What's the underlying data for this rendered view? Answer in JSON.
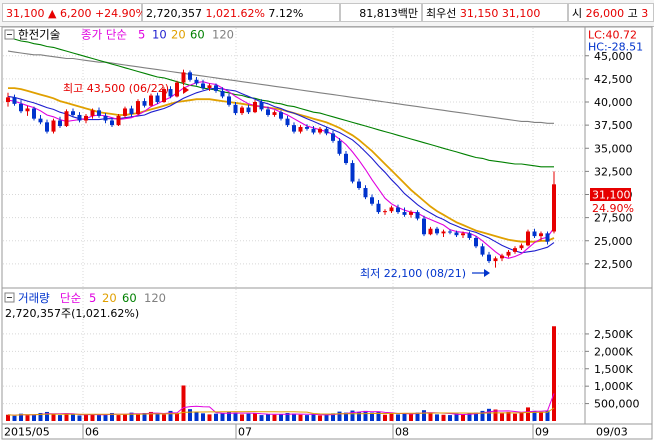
{
  "topbar": {
    "price": "31,100",
    "change_arrow": "▲",
    "change": "6,200",
    "change_pct": "+24.90%",
    "volume": "2,720,357",
    "volume_ratio": "1,021.62%",
    "turnover": "7.12%",
    "amount": "81,813백만",
    "lowest_label": "최우선",
    "bid": "31,150",
    "ask": "31,100",
    "open_label": "시",
    "open": "26,000",
    "high_label": "고",
    "high_cut": "3"
  },
  "price_panel": {
    "stock_name": "한전기술",
    "indicator_label": "종가 단순",
    "ma_periods": [
      "5",
      "10",
      "20",
      "60",
      "120"
    ],
    "lc": "LC:40.72",
    "hc": "HC:-28.51",
    "last_price": "31,100",
    "last_change_pct": "24.90%",
    "high_annotation": "최고 43,500 (06/22)",
    "low_annotation": "최저 22,100 (08/21)"
  },
  "volume_panel": {
    "title": "거래량",
    "indicator_label": "단순",
    "ma_periods": [
      "5",
      "20",
      "60",
      "120"
    ],
    "last_volume": "2,720,357주(1,021.62%)"
  },
  "colors": {
    "up": "#e60000",
    "down": "#0033cc",
    "ma5": "#e000e0",
    "ma10": "#1f1fcf",
    "ma20": "#e0a000",
    "ma60": "#008000",
    "ma120": "#808080"
  },
  "chart_data": [
    {
      "type": "candlestick",
      "title": "한전기술",
      "y_axis_side": "right",
      "ylim": [
        20000,
        48000
      ],
      "yticks": [
        22500,
        25000,
        27500,
        30000,
        32500,
        35000,
        37500,
        40000,
        42500,
        45000
      ],
      "ytick_labels": [
        "22,500",
        "25,000",
        "27,500",
        "30,000",
        "32,500",
        "35,000",
        "37,500",
        "40,000",
        "42,500",
        "45,000"
      ],
      "x_tick_labels": [
        "2015/05",
        "06",
        "07",
        "08",
        "09",
        "09/03"
      ],
      "candles": [
        [
          40000,
          41000,
          39500,
          40500
        ],
        [
          40500,
          40800,
          39600,
          39800
        ],
        [
          39800,
          40200,
          38800,
          39000
        ],
        [
          39000,
          39600,
          38500,
          39300
        ],
        [
          39300,
          39500,
          38000,
          38200
        ],
        [
          38200,
          38600,
          37600,
          37800
        ],
        [
          37800,
          38100,
          36600,
          36800
        ],
        [
          36800,
          38200,
          36600,
          38000
        ],
        [
          38000,
          38400,
          37200,
          37400
        ],
        [
          37400,
          39200,
          37300,
          39000
        ],
        [
          39000,
          39300,
          38400,
          38600
        ],
        [
          38600,
          38900,
          37800,
          38000
        ],
        [
          38000,
          38700,
          37700,
          38500
        ],
        [
          38500,
          39300,
          38200,
          39100
        ],
        [
          39100,
          39400,
          38300,
          38500
        ],
        [
          38500,
          38800,
          37700,
          38000
        ],
        [
          38000,
          38300,
          37300,
          37500
        ],
        [
          37500,
          38700,
          37400,
          38500
        ],
        [
          38500,
          39500,
          38300,
          39300
        ],
        [
          39300,
          39600,
          38400,
          38700
        ],
        [
          38700,
          40300,
          38600,
          40100
        ],
        [
          40100,
          40400,
          39400,
          39600
        ],
        [
          39600,
          40900,
          39500,
          40700
        ],
        [
          40700,
          41000,
          39800,
          40000
        ],
        [
          40000,
          41600,
          39900,
          41400
        ],
        [
          41400,
          41700,
          40400,
          40600
        ],
        [
          40600,
          42300,
          40500,
          42100
        ],
        [
          42100,
          43500,
          41800,
          43200
        ],
        [
          43200,
          43400,
          42200,
          42400
        ],
        [
          42400,
          42700,
          41800,
          42000
        ],
        [
          42000,
          42400,
          41300,
          41500
        ],
        [
          41500,
          42000,
          41200,
          41800
        ],
        [
          41800,
          42000,
          41000,
          41200
        ],
        [
          41200,
          41600,
          40400,
          40600
        ],
        [
          40600,
          40900,
          39500,
          39700
        ],
        [
          39700,
          40000,
          38600,
          38800
        ],
        [
          38800,
          39600,
          38600,
          39400
        ],
        [
          39400,
          39700,
          38700,
          38900
        ],
        [
          38900,
          40200,
          38800,
          40000
        ],
        [
          40000,
          40300,
          39000,
          39200
        ],
        [
          39200,
          39500,
          38400,
          38600
        ],
        [
          38600,
          39100,
          38400,
          38900
        ],
        [
          38900,
          39100,
          38000,
          38200
        ],
        [
          38200,
          38500,
          37300,
          37500
        ],
        [
          37500,
          37800,
          36600,
          36800
        ],
        [
          36800,
          37500,
          36600,
          37300
        ],
        [
          37300,
          37600,
          36900,
          37100
        ],
        [
          37100,
          37400,
          36500,
          36700
        ],
        [
          36700,
          37300,
          36500,
          37100
        ],
        [
          37100,
          37300,
          36400,
          36600
        ],
        [
          36600,
          36900,
          35600,
          35800
        ],
        [
          35800,
          36100,
          34200,
          34400
        ],
        [
          34400,
          34700,
          33200,
          33400
        ],
        [
          33400,
          33700,
          31200,
          31400
        ],
        [
          31400,
          31700,
          30500,
          30700
        ],
        [
          30700,
          31000,
          29500,
          29700
        ],
        [
          29700,
          30000,
          28800,
          29000
        ],
        [
          29000,
          29400,
          27900,
          28100
        ],
        [
          28100,
          28400,
          27800,
          28200
        ],
        [
          28200,
          28800,
          28000,
          28600
        ],
        [
          28600,
          28900,
          27900,
          28100
        ],
        [
          28100,
          28600,
          27600,
          27800
        ],
        [
          27800,
          28300,
          27500,
          28100
        ],
        [
          28100,
          28300,
          27200,
          27400
        ],
        [
          27400,
          27700,
          25500,
          25700
        ],
        [
          25700,
          26500,
          25600,
          26300
        ],
        [
          26300,
          26500,
          25600,
          25800
        ],
        [
          25800,
          26200,
          25400,
          26000
        ],
        [
          26000,
          26200,
          25700,
          25900
        ],
        [
          25900,
          26100,
          25400,
          25600
        ],
        [
          25600,
          26000,
          25300,
          25800
        ],
        [
          25800,
          26000,
          25100,
          25300
        ],
        [
          25300,
          25500,
          24200,
          24400
        ],
        [
          24400,
          24700,
          23300,
          23500
        ],
        [
          23500,
          23800,
          22600,
          22800
        ],
        [
          22800,
          23300,
          22100,
          23100
        ],
        [
          23100,
          23600,
          22800,
          23400
        ],
        [
          23400,
          24000,
          23200,
          23800
        ],
        [
          23800,
          24400,
          23600,
          24200
        ],
        [
          24200,
          24700,
          24000,
          24500
        ],
        [
          24500,
          26200,
          24400,
          26000
        ],
        [
          26000,
          26300,
          25300,
          25500
        ],
        [
          25500,
          26000,
          25000,
          25800
        ],
        [
          25800,
          26000,
          24600,
          24900
        ],
        [
          26000,
          32500,
          25800,
          31100
        ]
      ],
      "moving_averages": [
        {
          "name": "5",
          "values": [
            40200,
            40100,
            39850,
            39600,
            39400,
            39050,
            38600,
            38400,
            38100,
            37900,
            38000,
            38100,
            38200,
            38500,
            38600,
            38500,
            38300,
            38100,
            38200,
            38300,
            38600,
            39000,
            39500,
            39800,
            40200,
            40500,
            41000,
            41500,
            41800,
            42100,
            42200,
            42000,
            41900,
            41500,
            41100,
            40600,
            40200,
            39800,
            39600,
            39500,
            39400,
            39200,
            38900,
            38600,
            38200,
            37800,
            37400,
            37200,
            37000,
            36800,
            36500,
            36000,
            35400,
            34600,
            33700,
            32700,
            31600,
            30600,
            29600,
            29000,
            28600,
            28300,
            28100,
            28000,
            27600,
            27300,
            27000,
            26700,
            26200,
            26000,
            25900,
            25800,
            25500,
            25000,
            24400,
            23800,
            23300,
            23100,
            23300,
            23600,
            24200,
            24800,
            25200,
            25400,
            26400
          ]
        },
        {
          "name": "10",
          "values": [
            40600,
            40500,
            40300,
            40100,
            39900,
            39650,
            39400,
            39200,
            38900,
            38700,
            38400,
            38200,
            38100,
            38100,
            38100,
            38200,
            38200,
            38200,
            38300,
            38400,
            38500,
            38600,
            38900,
            39100,
            39300,
            39600,
            40000,
            40400,
            40700,
            41000,
            41200,
            41400,
            41500,
            41400,
            41300,
            41200,
            40900,
            40600,
            40300,
            40000,
            39800,
            39500,
            39300,
            39000,
            38800,
            38500,
            38200,
            37900,
            37600,
            37300,
            37000,
            36700,
            36300,
            35900,
            35300,
            34600,
            33900,
            33100,
            32400,
            31600,
            30900,
            30100,
            29500,
            28900,
            28400,
            28000,
            27600,
            27300,
            26900,
            26600,
            26300,
            26100,
            25900,
            25600,
            25300,
            24900,
            24500,
            24200,
            23900,
            23700,
            23800,
            23900,
            24100,
            24300,
            24800
          ]
        },
        {
          "name": "20",
          "values": [
            41500,
            41500,
            41400,
            41200,
            41000,
            40800,
            40600,
            40400,
            40100,
            39900,
            39700,
            39500,
            39300,
            39100,
            38900,
            38800,
            38700,
            38600,
            38600,
            38700,
            38800,
            39000,
            39200,
            39400,
            39600,
            39800,
            40000,
            40100,
            40200,
            40300,
            40300,
            40300,
            40200,
            40100,
            40000,
            39900,
            39800,
            39700,
            39600,
            39500,
            39400,
            39300,
            39200,
            39000,
            38800,
            38600,
            38400,
            38200,
            38000,
            37800,
            37500,
            37200,
            36800,
            36400,
            35900,
            35300,
            34700,
            34000,
            33300,
            32600,
            31900,
            31200,
            30500,
            29900,
            29300,
            28700,
            28200,
            27800,
            27400,
            27000,
            26700,
            26400,
            26100,
            25900,
            25700,
            25500,
            25300,
            25100,
            25000,
            24900,
            24900,
            24900,
            25000,
            25000,
            25300
          ]
        },
        {
          "name": "60",
          "values": [
            47000,
            46800,
            46600,
            46500,
            46300,
            46200,
            46000,
            45900,
            45700,
            45500,
            45300,
            45100,
            44900,
            44700,
            44500,
            44300,
            44100,
            43900,
            43700,
            43500,
            43300,
            43100,
            42900,
            42700,
            42600,
            42400,
            42200,
            42000,
            41800,
            41700,
            41500,
            41400,
            41300,
            41100,
            41000,
            40800,
            40700,
            40500,
            40400,
            40200,
            40100,
            39900,
            39800,
            39600,
            39500,
            39300,
            39100,
            38900,
            38800,
            38600,
            38400,
            38200,
            38000,
            37800,
            37600,
            37400,
            37200,
            37000,
            36800,
            36600,
            36400,
            36200,
            36000,
            35800,
            35600,
            35400,
            35200,
            35000,
            34800,
            34600,
            34400,
            34200,
            34000,
            33900,
            33700,
            33600,
            33500,
            33400,
            33300,
            33300,
            33200,
            33100,
            33000,
            33000,
            33000
          ]
        },
        {
          "name": "120",
          "values": [
            45500,
            45400,
            45300,
            45200,
            45100,
            45100,
            45000,
            44900,
            44800,
            44700,
            44700,
            44600,
            44500,
            44400,
            44300,
            44300,
            44200,
            44100,
            44000,
            43900,
            43800,
            43700,
            43600,
            43500,
            43400,
            43300,
            43200,
            43100,
            43000,
            42900,
            42800,
            42700,
            42600,
            42500,
            42400,
            42300,
            42200,
            42100,
            42000,
            41900,
            41800,
            41700,
            41600,
            41500,
            41400,
            41300,
            41200,
            41100,
            41000,
            40900,
            40800,
            40700,
            40600,
            40500,
            40400,
            40300,
            40200,
            40100,
            40000,
            39900,
            39800,
            39700,
            39600,
            39500,
            39400,
            39300,
            39200,
            39100,
            39000,
            38900,
            38800,
            38700,
            38600,
            38500,
            38400,
            38300,
            38200,
            38100,
            38000,
            37900,
            37900,
            37800,
            37800,
            37700,
            37700
          ]
        }
      ]
    },
    {
      "type": "bar",
      "title": "거래량",
      "y_axis_side": "right",
      "ylim": [
        0,
        2900000
      ],
      "yticks": [
        500000,
        1000000,
        1500000,
        2000000,
        2500000
      ],
      "ytick_labels": [
        "500,000",
        "1,000K",
        "1,500K",
        "2,000K",
        "2,500K"
      ],
      "values": [
        180000,
        150000,
        210000,
        170000,
        190000,
        230000,
        260000,
        200000,
        170000,
        210000,
        190000,
        160000,
        180000,
        200000,
        170000,
        190000,
        230000,
        170000,
        200000,
        240000,
        200000,
        230000,
        260000,
        200000,
        190000,
        290000,
        230000,
        1020000,
        340000,
        250000,
        220000,
        190000,
        210000,
        230000,
        260000,
        240000,
        190000,
        210000,
        220000,
        170000,
        200000,
        180000,
        190000,
        230000,
        210000,
        180000,
        170000,
        190000,
        160000,
        180000,
        220000,
        270000,
        240000,
        300000,
        260000,
        290000,
        240000,
        260000,
        180000,
        210000,
        190000,
        230000,
        200000,
        240000,
        310000,
        220000,
        190000,
        180000,
        170000,
        210000,
        190000,
        230000,
        240000,
        290000,
        350000,
        330000,
        220000,
        260000,
        210000,
        240000,
        390000,
        290000,
        260000,
        300000,
        2720357
      ]
    }
  ]
}
